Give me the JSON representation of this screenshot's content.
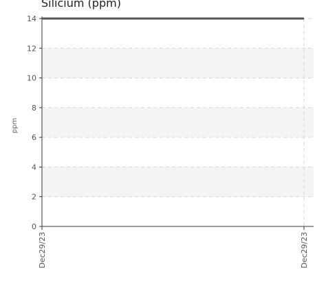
{
  "chart_data": {
    "type": "line",
    "title": "Silicium (ppm)",
    "xlabel": "",
    "ylabel": "ppm",
    "x": [
      "Dec29/23",
      "Dec29/23"
    ],
    "series": [
      {
        "values": [
          14,
          14
        ]
      }
    ],
    "ylim": [
      0,
      14
    ],
    "yticks": [
      0,
      2,
      4,
      6,
      8,
      10,
      12,
      14
    ],
    "grid": true,
    "colors": {
      "line": "#555555",
      "band": "#f4f4f4",
      "grid": "#d6d6d6",
      "axis": "#333333"
    }
  }
}
